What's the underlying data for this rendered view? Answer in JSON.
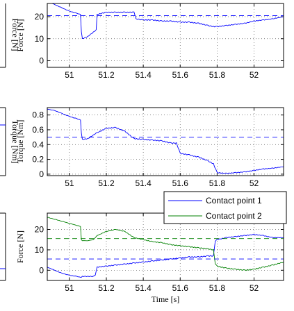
{
  "chart_data": [
    {
      "type": "line",
      "xlabel": "",
      "ylabel": "Force [N]",
      "xlim": [
        50.88,
        52.16
      ],
      "ylim": [
        -3,
        26
      ],
      "xticks": [
        "51",
        "51.2",
        "51.4",
        "51.6",
        "51.8",
        "52"
      ],
      "yticks": [
        "0",
        "10",
        "20"
      ],
      "grid": true,
      "series": [
        {
          "color": "#0000ff",
          "style": "solid",
          "x": [
            50.88,
            50.92,
            50.96,
            51.0,
            51.04,
            51.06,
            51.065,
            51.07,
            51.1,
            51.13,
            51.145,
            51.15,
            51.2,
            51.25,
            51.3,
            51.35,
            51.36,
            51.4,
            51.45,
            51.5,
            51.55,
            51.6,
            51.65,
            51.7,
            51.75,
            51.78,
            51.8,
            51.85,
            51.9,
            51.95,
            52.0,
            52.05,
            52.1,
            52.16
          ],
          "y": [
            27,
            25.5,
            24,
            22.5,
            21.5,
            21,
            13,
            10,
            11,
            13,
            14,
            21,
            22,
            22,
            22,
            22,
            19,
            18.5,
            18.5,
            18,
            18,
            17.5,
            17.5,
            17,
            16,
            15.5,
            15.5,
            16,
            16.5,
            17,
            18,
            18.5,
            19,
            20
          ]
        },
        {
          "color": "#0000ff",
          "style": "dashed",
          "x": [
            50.88,
            52.16
          ],
          "y": [
            20.5,
            20.5
          ]
        }
      ]
    },
    {
      "type": "line",
      "xlabel": "",
      "ylabel": "Torque [Nm]",
      "xlim": [
        50.88,
        52.16
      ],
      "ylim": [
        -0.02,
        0.9
      ],
      "xticks": [
        "51",
        "51.2",
        "51.4",
        "51.6",
        "51.8",
        "52"
      ],
      "yticks": [
        "0",
        "0.2",
        "0.4",
        "0.6",
        "0.8"
      ],
      "grid": true,
      "series": [
        {
          "color": "#0000ff",
          "style": "solid",
          "x": [
            50.88,
            50.92,
            50.96,
            51.0,
            51.04,
            51.06,
            51.065,
            51.07,
            51.1,
            51.13,
            51.15,
            51.2,
            51.25,
            51.28,
            51.3,
            51.35,
            51.4,
            51.45,
            51.5,
            51.55,
            51.58,
            51.6,
            51.65,
            51.68,
            51.7,
            51.75,
            51.78,
            51.8,
            51.85,
            51.9,
            51.95,
            52.0,
            52.05,
            52.1,
            52.16
          ],
          "y": [
            0.88,
            0.86,
            0.82,
            0.78,
            0.75,
            0.73,
            0.55,
            0.47,
            0.48,
            0.53,
            0.56,
            0.62,
            0.63,
            0.6,
            0.58,
            0.48,
            0.47,
            0.46,
            0.45,
            0.42,
            0.42,
            0.28,
            0.26,
            0.24,
            0.23,
            0.18,
            0.14,
            0.02,
            0.01,
            0.02,
            0.03,
            0.05,
            0.07,
            0.08,
            0.1
          ]
        },
        {
          "color": "#0000ff",
          "style": "dashed",
          "x": [
            50.88,
            52.16
          ],
          "y": [
            0.5,
            0.5
          ]
        }
      ]
    },
    {
      "type": "line",
      "xlabel": "Time [s]",
      "ylabel": "Force [N]",
      "xlim": [
        50.88,
        52.16
      ],
      "ylim": [
        -5,
        28
      ],
      "xticks": [
        "51",
        "51.2",
        "51.4",
        "51.6",
        "51.8",
        "52"
      ],
      "yticks": [
        "0",
        "10",
        "20"
      ],
      "grid": true,
      "legend": {
        "placement": "top-right",
        "entries": [
          "Contact point 1",
          "Contact point 2"
        ]
      },
      "series": [
        {
          "name": "Contact point 1",
          "color": "#0000ff",
          "style": "solid",
          "x": [
            50.88,
            50.92,
            50.96,
            51.0,
            51.04,
            51.06,
            51.065,
            51.07,
            51.1,
            51.13,
            51.14,
            51.15,
            51.2,
            51.25,
            51.3,
            51.35,
            51.4,
            51.45,
            51.5,
            51.55,
            51.6,
            51.65,
            51.7,
            51.75,
            51.78,
            51.79,
            51.8,
            51.85,
            51.9,
            51.95,
            52.0,
            52.05,
            52.1,
            52.16
          ],
          "y": [
            1.5,
            0,
            -1.5,
            -2.5,
            -3,
            -3.5,
            -3.5,
            -3,
            -3,
            -3,
            -2.5,
            1.5,
            2,
            2.5,
            3,
            3.5,
            4,
            4.5,
            5,
            5.5,
            6,
            6.5,
            6.5,
            7,
            7,
            14,
            15,
            16,
            16.5,
            17,
            17.5,
            17,
            16,
            16
          ]
        },
        {
          "name": "Contact point 2",
          "color": "#008000",
          "style": "solid",
          "x": [
            50.88,
            50.92,
            50.96,
            51.0,
            51.04,
            51.06,
            51.065,
            51.07,
            51.1,
            51.13,
            51.14,
            51.15,
            51.2,
            51.25,
            51.3,
            51.35,
            51.4,
            51.45,
            51.5,
            51.55,
            51.6,
            51.65,
            51.7,
            51.75,
            51.78,
            51.79,
            51.8,
            51.85,
            51.9,
            51.95,
            52.0,
            52.05,
            52.1,
            52.16
          ],
          "y": [
            26,
            25,
            24,
            23,
            22,
            21.5,
            15,
            14.5,
            14.5,
            15,
            16,
            17,
            19,
            20,
            19,
            16,
            15,
            14,
            13.5,
            12.5,
            12,
            11.5,
            11,
            10.5,
            10,
            3,
            2,
            1,
            0.5,
            0,
            0.5,
            1.5,
            2.5,
            4
          ]
        },
        {
          "color": "#0000ff",
          "style": "dashed",
          "x": [
            50.88,
            52.16
          ],
          "y": [
            5.5,
            5.5
          ]
        },
        {
          "color": "#008000",
          "style": "dashed",
          "x": [
            50.88,
            52.16
          ],
          "y": [
            15.5,
            15.5
          ]
        }
      ]
    }
  ]
}
